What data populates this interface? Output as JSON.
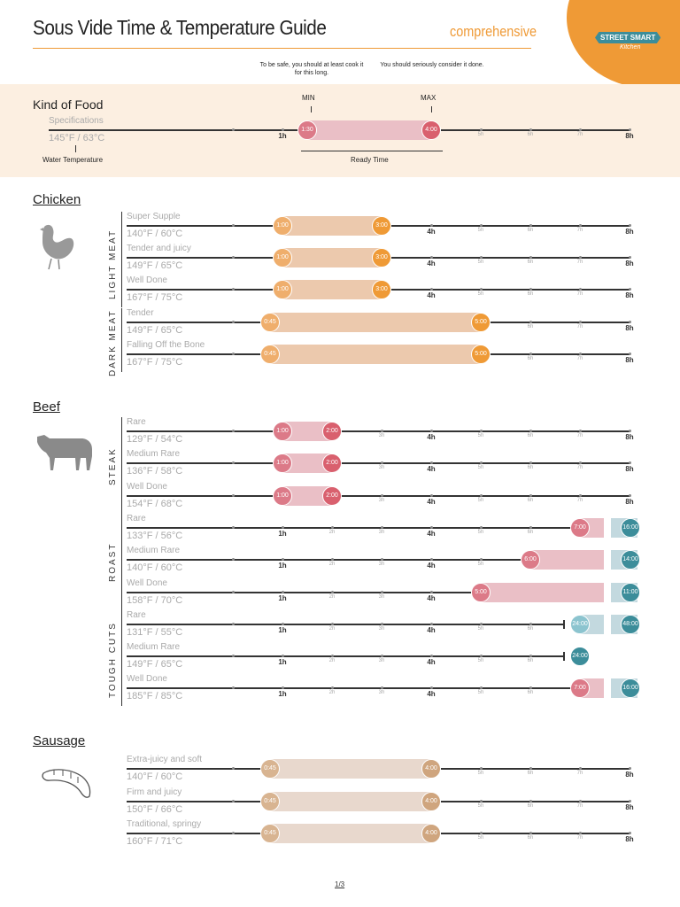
{
  "header": {
    "title": "Sous Vide Time & Temperature Guide",
    "subtitle": "comprehensive",
    "logo_text": "STREET SMART",
    "logo_sub": "Kitchen",
    "min_note": "To be safe, you should at least cook it for this long.",
    "max_note": "You should seriously consider it done."
  },
  "legend": {
    "heading": "Kind of Food",
    "spec": "Specifications",
    "temp": "145°F / 63°C",
    "min_label": "MIN",
    "max_label": "MAX",
    "min": "1:30",
    "max": "4:00",
    "water_temp_label": "Water Temperature",
    "ready_time_label": "Ready Time"
  },
  "axis": {
    "ticks": [
      "",
      "1h",
      "2h",
      "3h",
      "4h",
      "5h",
      "6h",
      "7h",
      "8h"
    ]
  },
  "colors": {
    "chicken": {
      "bar": "#ecc9ad",
      "min": "#efae6c",
      "max": "#ef9a36"
    },
    "beef": {
      "bar": "#eabfc6",
      "min": "#dc7a88",
      "max": "#d9606e"
    },
    "teal": {
      "box": "#c3d9df",
      "dark": "#3c8d9a",
      "light": "#8cc4cf"
    },
    "sausage": {
      "bar": "#e8d8cd",
      "min": "#d8b491",
      "max": "#cfa57e"
    },
    "accent": "#ef9a36",
    "band": "#fcefe1"
  },
  "sections": [
    {
      "title": "Chicken",
      "icon": "chicken-icon",
      "color": "chicken",
      "groups": [
        {
          "label": "LIGHT MEAT",
          "rows": [
            {
              "name": "Super Supple",
              "temp": "140°F / 60°C",
              "min": "1:00",
              "max": "3:00"
            },
            {
              "name": "Tender and juicy",
              "temp": "149°F / 65°C",
              "min": "1:00",
              "max": "3:00"
            },
            {
              "name": "Well Done",
              "temp": "167°F / 75°C",
              "min": "1:00",
              "max": "3:00"
            }
          ]
        },
        {
          "label": "DARK MEAT",
          "rows": [
            {
              "name": "Tender",
              "temp": "149°F / 65°C",
              "min": "0:45",
              "max": "5:00"
            },
            {
              "name": "Falling Off the Bone",
              "temp": "167°F / 75°C",
              "min": "0:45",
              "max": "5:00"
            }
          ]
        }
      ]
    },
    {
      "title": "Beef",
      "icon": "cow-icon",
      "color": "beef",
      "groups": [
        {
          "label": "STEAK",
          "rows": [
            {
              "name": "Rare",
              "temp": "129°F / 54°C",
              "min": "1:00",
              "max": "2:00"
            },
            {
              "name": "Medium Rare",
              "temp": "136°F / 58°C",
              "min": "1:00",
              "max": "2:00"
            },
            {
              "name": "Well Done",
              "temp": "154°F / 68°C",
              "min": "1:00",
              "max": "2:00"
            }
          ]
        },
        {
          "label": "ROAST",
          "rows": [
            {
              "name": "Rare",
              "temp": "133°F / 56°C",
              "min": "7:00",
              "max": "16:00"
            },
            {
              "name": "Medium Rare",
              "temp": "140°F / 60°C",
              "min": "6:00",
              "max": "14:00"
            },
            {
              "name": "Well Done",
              "temp": "158°F / 70°C",
              "min": "5:00",
              "max": "11:00"
            }
          ]
        },
        {
          "label": "TOUGH CUTS",
          "rows": [
            {
              "name": "Rare",
              "temp": "131°F / 55°C",
              "min": "24:00",
              "max": "48:00"
            },
            {
              "name": "Medium Rare",
              "temp": "149°F / 65°C",
              "min": "24:00"
            },
            {
              "name": "Well Done",
              "temp": "185°F / 85°C",
              "min": "7:00",
              "max": "16:00"
            }
          ]
        }
      ]
    },
    {
      "title": "Sausage",
      "icon": "sausage-icon",
      "color": "sausage",
      "groups": [
        {
          "label": "",
          "rows": [
            {
              "name": "Extra-juicy and soft",
              "temp": "140°F / 60°C",
              "min": "0:45",
              "max": "4:00"
            },
            {
              "name": "Firm and juicy",
              "temp": "150°F / 66°C",
              "min": "0:45",
              "max": "4:00"
            },
            {
              "name": "Traditional, springy",
              "temp": "160°F / 71°C",
              "min": "0:45",
              "max": "4:00"
            }
          ]
        }
      ]
    }
  ],
  "footer": {
    "page": "1/3"
  }
}
